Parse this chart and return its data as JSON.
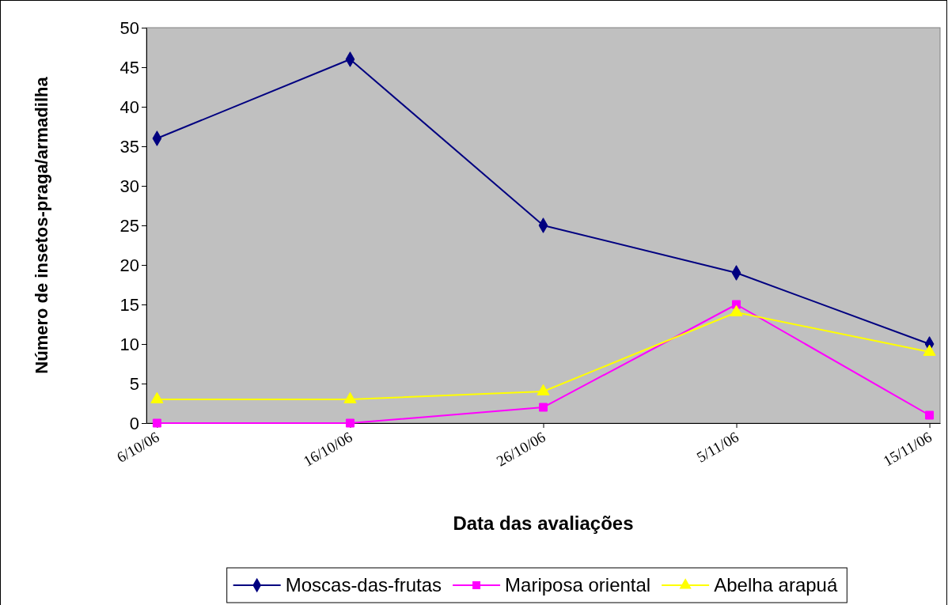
{
  "chart_data": {
    "type": "line",
    "xlabel": "Data das avaliações",
    "ylabel": "Número de insetos-praga/armadilha",
    "categories": [
      "6/10/06",
      "16/10/06",
      "26/10/06",
      "5/11/06",
      "15/11/06"
    ],
    "series": [
      {
        "name": "Moscas-das-frutas",
        "color": "#000080",
        "marker": "diamond",
        "values": [
          36,
          46,
          25,
          19,
          10
        ]
      },
      {
        "name": "Mariposa oriental",
        "color": "#ff00ff",
        "marker": "square",
        "values": [
          0,
          0,
          2,
          15,
          1
        ]
      },
      {
        "name": "Abelha arapuá",
        "color": "#ffff00",
        "marker": "triangle",
        "values": [
          3,
          3,
          4,
          14,
          9
        ]
      }
    ],
    "ylim": [
      0,
      50
    ],
    "yticks": [
      0,
      5,
      10,
      15,
      20,
      25,
      30,
      35,
      40,
      45,
      50
    ],
    "grid": false,
    "legend": "bottom"
  }
}
